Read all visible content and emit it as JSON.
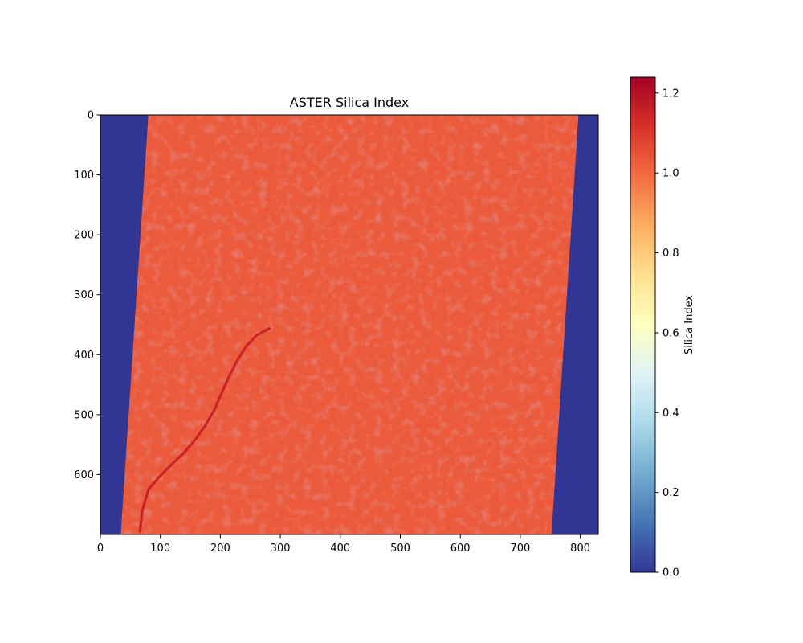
{
  "chart_data": {
    "type": "heatmap",
    "title": "ASTER Silica Index",
    "xlabel": "",
    "ylabel": "",
    "xlim": [
      0,
      830
    ],
    "ylim": [
      700,
      0
    ],
    "x_ticks": [
      0,
      100,
      200,
      300,
      400,
      500,
      600,
      700,
      800
    ],
    "y_ticks": [
      0,
      100,
      200,
      300,
      400,
      500,
      600
    ],
    "colormap": "RdYlBu_r",
    "colormap_stops": [
      "#313695",
      "#4575b4",
      "#74add1",
      "#abd9e9",
      "#e0f3f8",
      "#ffffbf",
      "#fee090",
      "#fdae61",
      "#f46d43",
      "#d73027",
      "#a50026"
    ],
    "colorbar": {
      "label": "Silica Index",
      "vmin": 0.0,
      "vmax": 1.24,
      "ticks": [
        "0.0",
        "0.2",
        "0.4",
        "0.6",
        "0.8",
        "1.0",
        "1.2"
      ],
      "tick_values": [
        0.0,
        0.2,
        0.4,
        0.6,
        0.8,
        1.0,
        1.2
      ]
    },
    "background_value": 0.0,
    "scene_typical_value": 1.03,
    "scene_footprint": {
      "top_left": [
        80,
        0
      ],
      "top_right": [
        797,
        0
      ],
      "bottom_right": [
        752,
        700
      ],
      "bottom_left": [
        34,
        700
      ]
    },
    "high_value_feature": {
      "description_value": 1.15,
      "path": [
        [
          282,
          356
        ],
        [
          260,
          368
        ],
        [
          243,
          386
        ],
        [
          228,
          410
        ],
        [
          215,
          435
        ],
        [
          203,
          462
        ],
        [
          190,
          492
        ],
        [
          175,
          518
        ],
        [
          158,
          542
        ],
        [
          140,
          563
        ],
        [
          120,
          582
        ],
        [
          100,
          602
        ],
        [
          80,
          625
        ],
        [
          70,
          660
        ],
        [
          66,
          695
        ]
      ]
    }
  }
}
